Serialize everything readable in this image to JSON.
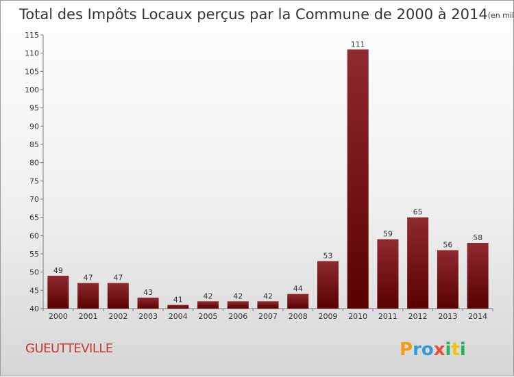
{
  "chart_data": {
    "type": "bar",
    "title": "Total des Impôts Locaux perçus par la Commune de 2000 à 2014",
    "title_unit": "(en milliers d'€)",
    "categories": [
      "2000",
      "2001",
      "2002",
      "2003",
      "2004",
      "2005",
      "2006",
      "2007",
      "2008",
      "2009",
      "2010",
      "2011",
      "2012",
      "2013",
      "2014"
    ],
    "values": [
      49,
      47,
      47,
      43,
      41,
      42,
      42,
      42,
      44,
      53,
      111,
      59,
      65,
      56,
      58
    ],
    "data_labels": [
      "49",
      "47",
      "47",
      "43",
      "41",
      "42",
      "42",
      "42",
      "44",
      "53",
      "111",
      "59",
      "65",
      "56",
      "58"
    ],
    "ylim": [
      40,
      115
    ],
    "yticks": [
      40,
      45,
      50,
      55,
      60,
      65,
      70,
      75,
      80,
      85,
      90,
      95,
      100,
      105,
      110,
      115
    ],
    "grid": false,
    "bar_color": "#7a1a1f"
  },
  "commune": "GUEUTTEVILLE",
  "logo": {
    "letters": [
      "P",
      "r",
      "o",
      "x",
      "i",
      "t",
      "i"
    ],
    "colors": [
      "#f39c12",
      "#3498db",
      "#3498db",
      "#e74c3c",
      "#27ae60",
      "#f1c40f",
      "#27ae60"
    ]
  }
}
